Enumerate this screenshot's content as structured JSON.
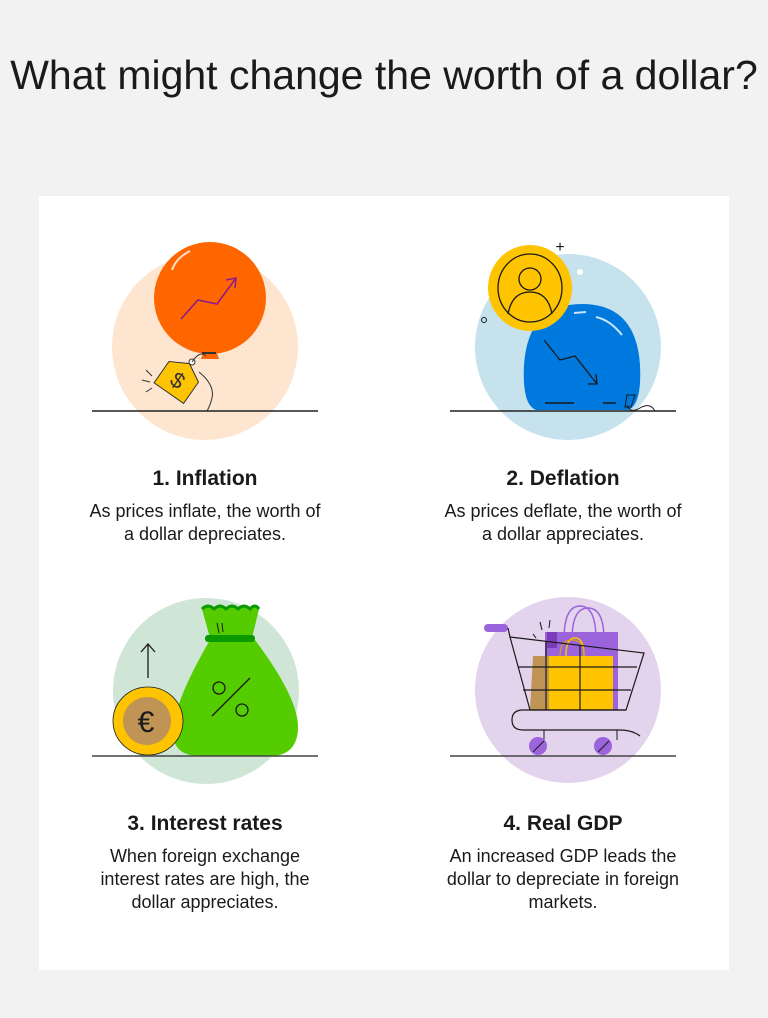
{
  "title": "What might change the worth of a dollar?",
  "items": [
    {
      "heading": "1. Inflation",
      "text": "As prices inflate, the worth of a dollar depreciates.",
      "icon": "balloon-price-tag-icon",
      "accent": "#ff6600",
      "bg": "#fde5cf"
    },
    {
      "heading": "2. Deflation",
      "text": "As prices deflate, the worth of a dollar appreciates.",
      "icon": "deflating-balloon-coin-icon",
      "accent": "#0079de",
      "bg": "#c6e2ec"
    },
    {
      "heading": "3. Interest rates",
      "text": "When foreign exchange interest rates are high, the dollar appreciates.",
      "icon": "money-bag-euro-coin-icon",
      "accent": "#55cc00",
      "bg": "#cfe6d6"
    },
    {
      "heading": "4. Real GDP",
      "text": "An increased GDP leads the dollar to depreciate in foreign markets.",
      "icon": "shopping-cart-bags-icon",
      "accent": "#9b63dc",
      "bg": "#e3d3ec"
    }
  ]
}
